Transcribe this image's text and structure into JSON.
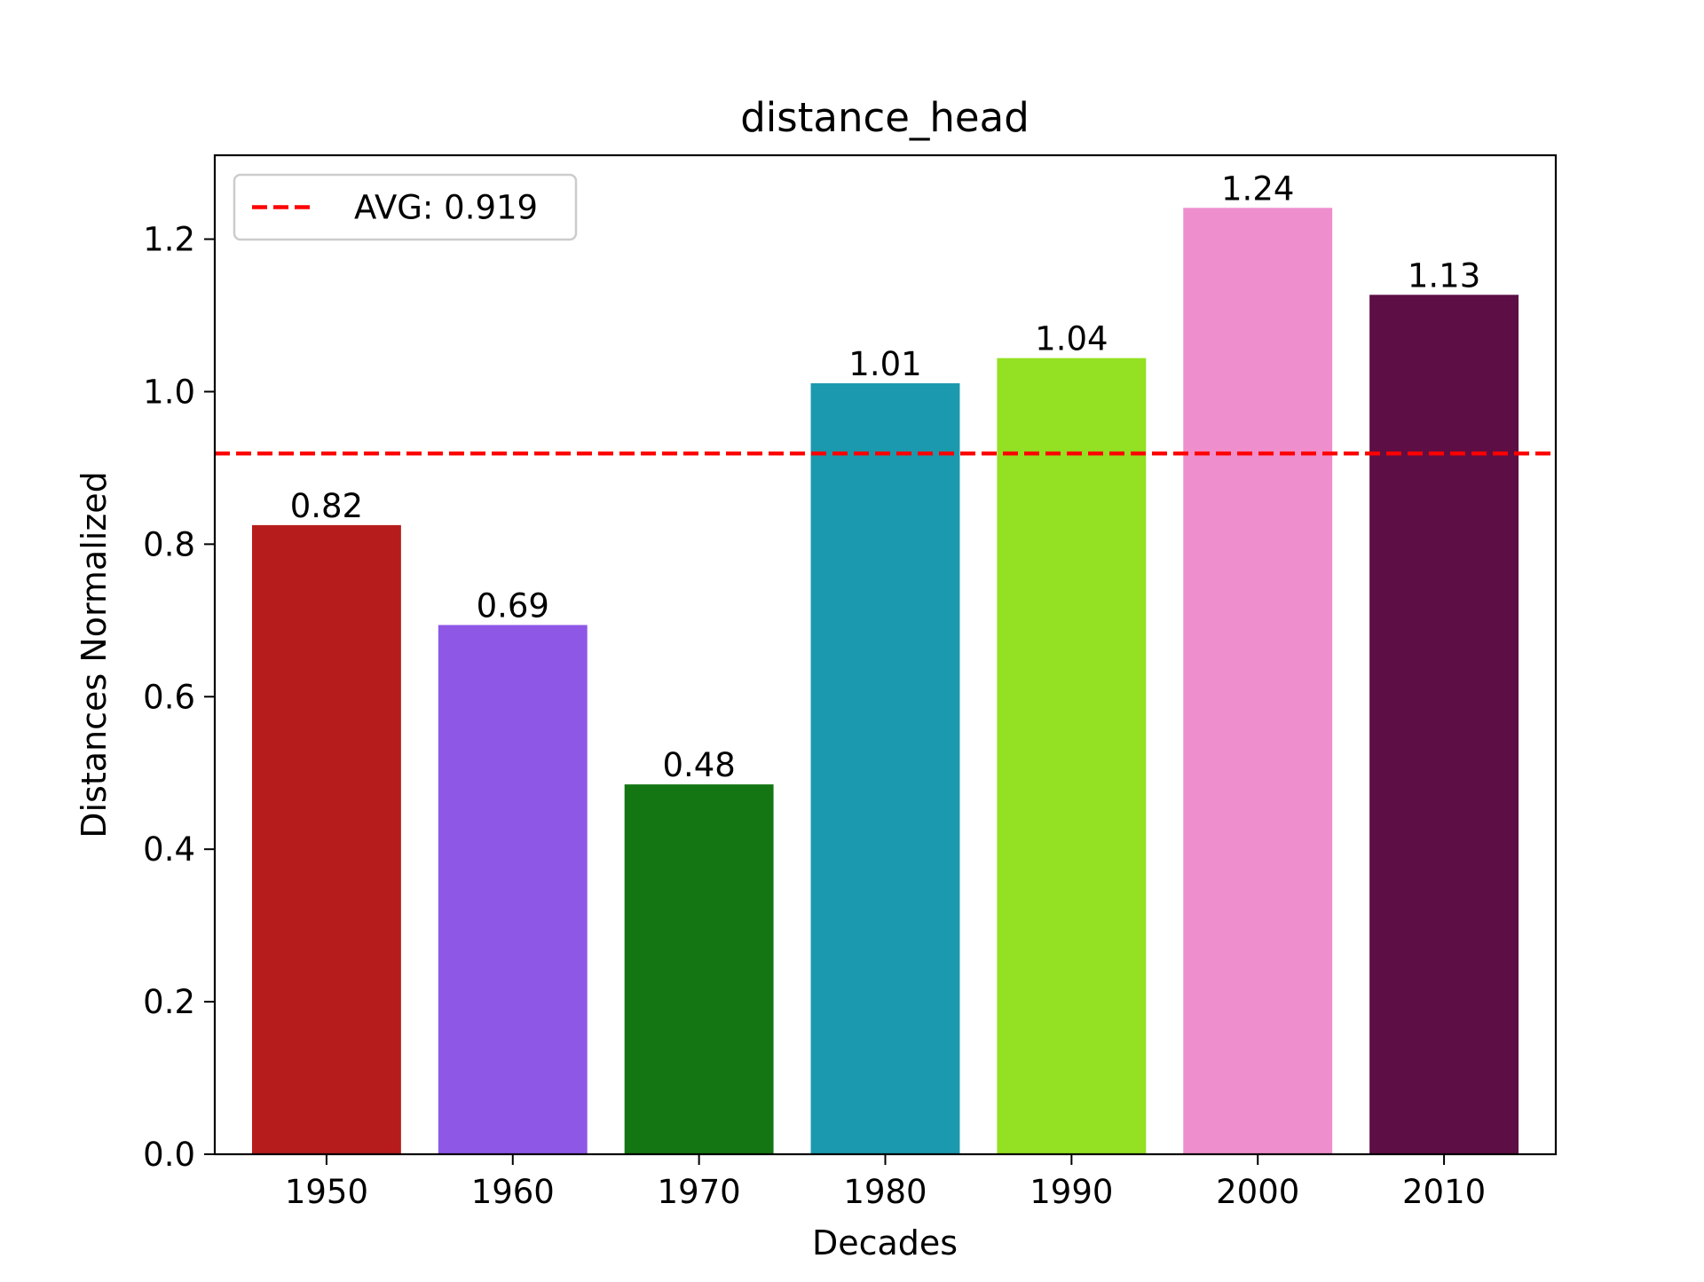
{
  "chart_data": {
    "type": "bar",
    "title": "distance_head",
    "xlabel": "Decades",
    "ylabel": "Distances Normalized",
    "categories": [
      "1950",
      "1960",
      "1970",
      "1980",
      "1990",
      "2000",
      "2010"
    ],
    "values": [
      0.825,
      0.694,
      0.485,
      1.011,
      1.044,
      1.241,
      1.127
    ],
    "bar_labels": [
      "0.82",
      "0.69",
      "0.48",
      "1.01",
      "1.04",
      "1.24",
      "1.13"
    ],
    "bar_colors": [
      "#b71c1c",
      "#8e57e6",
      "#137613",
      "#1b99ae",
      "#94e022",
      "#ef8ecd",
      "#5d0e45"
    ],
    "ylim": [
      0,
      1.31
    ],
    "yticks": [
      0.0,
      0.2,
      0.4,
      0.6,
      0.8,
      1.0,
      1.2
    ],
    "ytick_labels": [
      "0.0",
      "0.2",
      "0.4",
      "0.6",
      "0.8",
      "1.0",
      "1.2"
    ],
    "average": {
      "value": 0.919,
      "label": "AVG: 0.919",
      "color": "#ff0000",
      "style": "dashed"
    },
    "legend": {
      "placement": "top-left",
      "entries": [
        "AVG: 0.919"
      ]
    },
    "grid": false
  }
}
